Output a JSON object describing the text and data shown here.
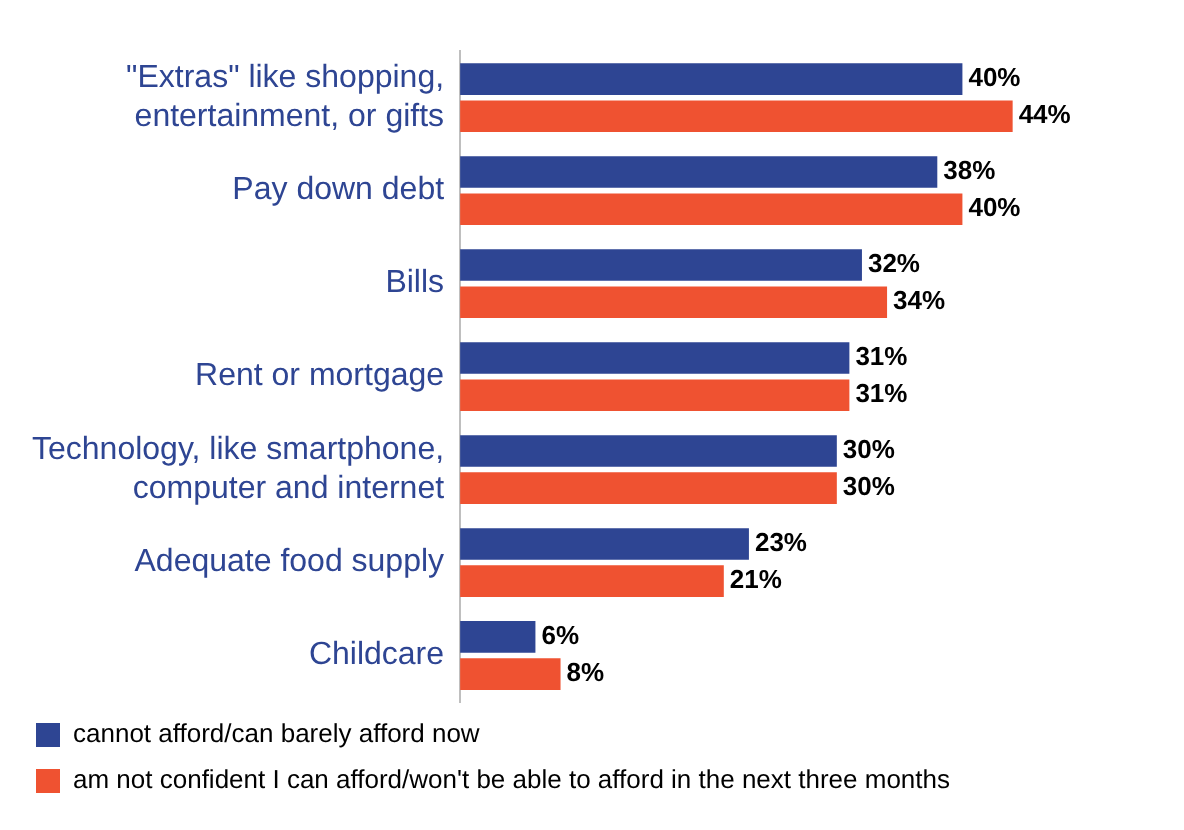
{
  "chart_data": {
    "type": "bar",
    "orientation": "horizontal",
    "categories": [
      "\"Extras\" like shopping, entertainment, or gifts",
      "Pay down debt",
      "Bills",
      "Rent or mortgage",
      "Technology, like smartphone, computer and internet",
      "Adequate food supply",
      "Childcare"
    ],
    "series": [
      {
        "name": "cannot afford/can barely afford now",
        "color": "#2e4593",
        "values": [
          40,
          38,
          32,
          31,
          30,
          23,
          6
        ],
        "value_labels": [
          "40%",
          "38%",
          "32%",
          "31%",
          "30%",
          "23%",
          "6%"
        ]
      },
      {
        "name": "am not confident I can afford/won't be able to afford in the next three months",
        "color": "#ef5231",
        "values": [
          44,
          40,
          34,
          31,
          30,
          21,
          8
        ],
        "value_labels": [
          "44%",
          "40%",
          "34%",
          "31%",
          "30%",
          "21%",
          "8%"
        ]
      }
    ],
    "legend": "bottom"
  }
}
